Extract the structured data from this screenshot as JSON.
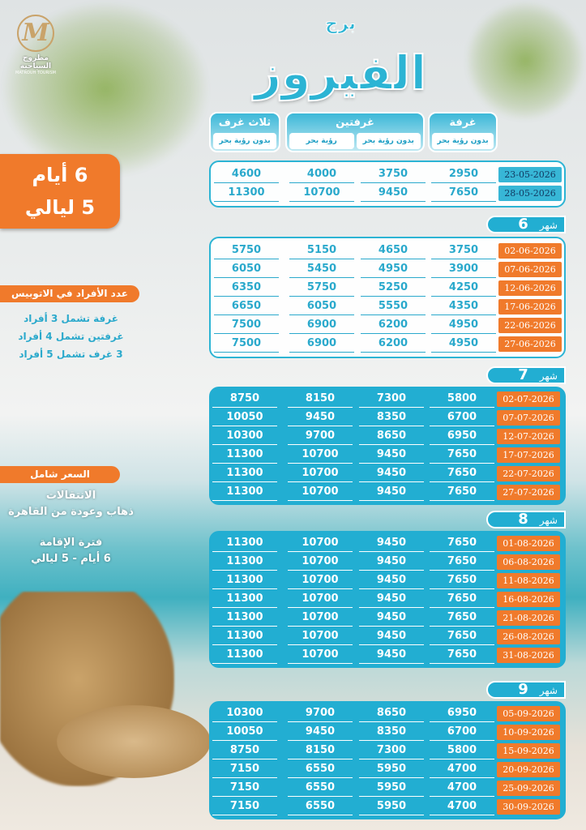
{
  "logo": {
    "name_ar": "مطروح السياحية",
    "name_en": "MATROUH TOURISM"
  },
  "title": {
    "small": "برج",
    "main": "الفيروز"
  },
  "headers": {
    "room": {
      "label": "غرفة",
      "subs": [
        "بدون رؤية بحر"
      ]
    },
    "two_rooms": {
      "label": "غرفتين",
      "subs": [
        "بدون رؤية بحر",
        "رؤية بحر"
      ]
    },
    "three_rooms": {
      "label": "ثلاث غرف",
      "subs": [
        "بدون رؤية بحر"
      ]
    }
  },
  "duration": {
    "days": "6 أيام",
    "nights": "5 ليالي"
  },
  "bus": {
    "label": "عدد الأفراد في الاتوبيس",
    "lines": [
      "غرفة تشمل 3 أفراد",
      "غرفتين تشمل 4 أفراد",
      "3 غرف تشمل 5 أفراد"
    ]
  },
  "includes": {
    "label": "السعر شامل",
    "transport_title": "الانتقالات",
    "transport": "ذهاب وعودة من القاهرة",
    "stay_title": "فترة الإقامة",
    "stay": "6 أيام - 5 ليالي"
  },
  "month_word": "شهر",
  "blocks": [
    {
      "month": "",
      "rows": [
        [
          "23-05-2026",
          "2950",
          "3750",
          "4000",
          "4600"
        ],
        [
          "28-05-2026",
          "7650",
          "9450",
          "10700",
          "11300"
        ]
      ]
    },
    {
      "month": "6",
      "rows": [
        [
          "02-06-2026",
          "3750",
          "4650",
          "5150",
          "5750"
        ],
        [
          "07-06-2026",
          "3900",
          "4950",
          "5450",
          "6050"
        ],
        [
          "12-06-2026",
          "4250",
          "5250",
          "5750",
          "6350"
        ],
        [
          "17-06-2026",
          "4350",
          "5550",
          "6050",
          "6650"
        ],
        [
          "22-06-2026",
          "4950",
          "6200",
          "6900",
          "7500"
        ],
        [
          "27-06-2026",
          "4950",
          "6200",
          "6900",
          "7500"
        ]
      ]
    },
    {
      "month": "7",
      "rows": [
        [
          "02-07-2026",
          "5800",
          "7300",
          "8150",
          "8750"
        ],
        [
          "07-07-2026",
          "6700",
          "8350",
          "9450",
          "10050"
        ],
        [
          "12-07-2026",
          "6950",
          "8650",
          "9700",
          "10300"
        ],
        [
          "17-07-2026",
          "7650",
          "9450",
          "10700",
          "11300"
        ],
        [
          "22-07-2026",
          "7650",
          "9450",
          "10700",
          "11300"
        ],
        [
          "27-07-2026",
          "7650",
          "9450",
          "10700",
          "11300"
        ]
      ]
    },
    {
      "month": "8",
      "rows": [
        [
          "01-08-2026",
          "7650",
          "9450",
          "10700",
          "11300"
        ],
        [
          "06-08-2026",
          "7650",
          "9450",
          "10700",
          "11300"
        ],
        [
          "11-08-2026",
          "7650",
          "9450",
          "10700",
          "11300"
        ],
        [
          "16-08-2026",
          "7650",
          "9450",
          "10700",
          "11300"
        ],
        [
          "21-08-2026",
          "7650",
          "9450",
          "10700",
          "11300"
        ],
        [
          "26-08-2026",
          "7650",
          "9450",
          "10700",
          "11300"
        ],
        [
          "31-08-2026",
          "7650",
          "9450",
          "10700",
          "11300"
        ]
      ]
    },
    {
      "month": "9",
      "rows": [
        [
          "05-09-2026",
          "6950",
          "8650",
          "9700",
          "10300"
        ],
        [
          "10-09-2026",
          "6700",
          "8350",
          "9450",
          "10050"
        ],
        [
          "15-09-2026",
          "5800",
          "7300",
          "8150",
          "8750"
        ],
        [
          "20-09-2026",
          "4700",
          "5950",
          "6550",
          "7150"
        ],
        [
          "25-09-2026",
          "4700",
          "5950",
          "6550",
          "7150"
        ],
        [
          "30-09-2026",
          "4700",
          "5950",
          "6550",
          "7150"
        ]
      ]
    }
  ],
  "colors": {
    "accent": "#22aed2",
    "orange": "#f07a2b"
  }
}
